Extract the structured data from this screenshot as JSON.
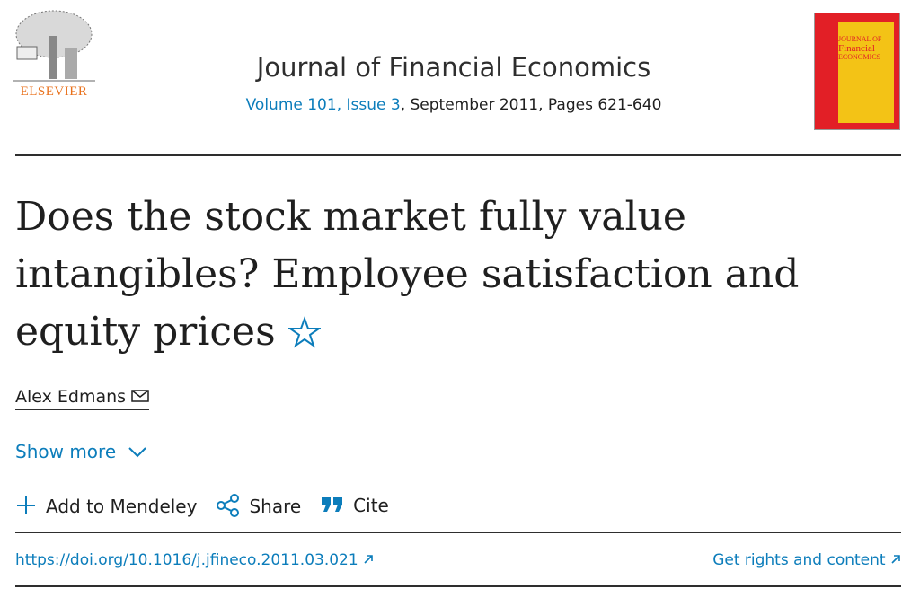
{
  "header": {
    "publisher": "ELSEVIER",
    "journal": "Journal of Financial Economics",
    "issue_link": "Volume 101, Issue 3",
    "issue_rest": ", September 2011, Pages 621-640",
    "cover": {
      "line1": "JOURNAL OF",
      "line2": "Financial",
      "line3": "ECONOMICS"
    }
  },
  "article": {
    "title": "Does the stock market fully value intangibles? Employee satisfaction and equity prices",
    "author": "Alex Edmans",
    "show_more": "Show more"
  },
  "actions": {
    "mendeley": "Add to Mendeley",
    "share": "Share",
    "cite": "Cite"
  },
  "links": {
    "doi": "https://doi.org/10.1016/j.jfineco.2011.03.021",
    "rights": "Get rights and content"
  }
}
